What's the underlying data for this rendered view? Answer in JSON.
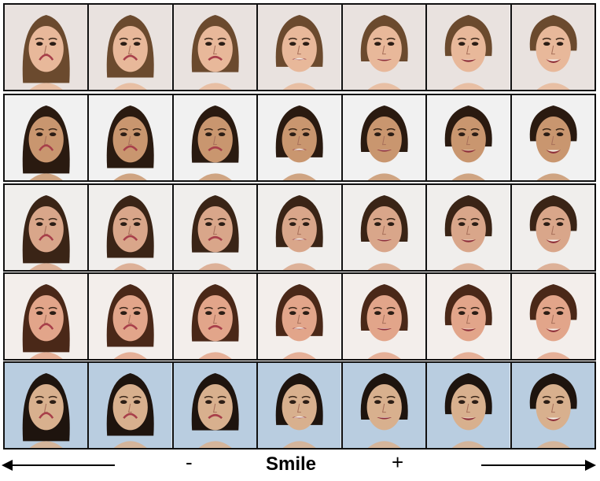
{
  "figure": {
    "rows": 5,
    "columns": 7,
    "row_palettes": [
      {
        "bg": "#e9e2df",
        "hair": "#6b4a2e",
        "skin": "#e8b89a"
      },
      {
        "bg": "#f1f1f1",
        "hair": "#2a1a10",
        "skin": "#c9966f"
      },
      {
        "bg": "#f0eeec",
        "hair": "#3a2416",
        "skin": "#d9a68a"
      },
      {
        "bg": "#f3eeeb",
        "hair": "#4a2818",
        "skin": "#e2a58a"
      },
      {
        "bg": "#b9cde0",
        "hair": "#1e140e",
        "skin": "#d8b08e"
      }
    ]
  },
  "axis": {
    "minus_label": "-",
    "title": "Smile",
    "plus_label": "+"
  }
}
